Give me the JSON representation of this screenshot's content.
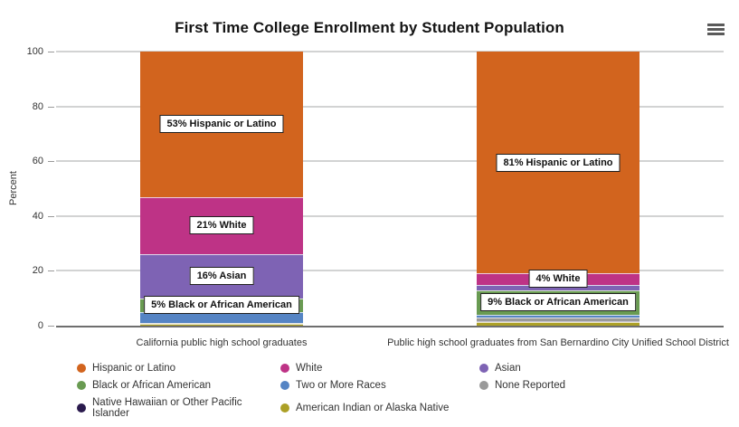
{
  "header": {
    "menu_icon": "hamburger-menu-icon"
  },
  "chart_data": {
    "type": "bar",
    "stacking": "percent",
    "title": "First Time College Enrollment by Student Population",
    "xlabel": "",
    "ylabel": "Percent",
    "ylim": [
      0,
      100
    ],
    "yticks": [
      0,
      20,
      40,
      60,
      80,
      100
    ],
    "grid": true,
    "legend_position": "bottom-left, 3 columns",
    "categories": [
      "California public high school graduates",
      "Public high school graduates from San Bernardino City Unified School District"
    ],
    "series": [
      {
        "name": "Hispanic or Latino",
        "color": "#D2641E",
        "values": [
          53,
          81
        ],
        "data_labels": [
          "53% Hispanic or Latino",
          "81% Hispanic or Latino"
        ]
      },
      {
        "name": "White",
        "color": "#BE3386",
        "values": [
          21,
          4
        ],
        "data_labels": [
          "21% White",
          "4% White"
        ]
      },
      {
        "name": "Asian",
        "color": "#7E63B4",
        "values": [
          16,
          2
        ],
        "data_labels": [
          "16% Asian",
          null
        ]
      },
      {
        "name": "Black or African American",
        "color": "#699B52",
        "values": [
          5,
          9
        ],
        "data_labels": [
          "5% Black or African American",
          "9% Black or African American"
        ]
      },
      {
        "name": "Two or More Races",
        "color": "#5584C4",
        "values": [
          4,
          1
        ],
        "data_labels": [
          null,
          null
        ]
      },
      {
        "name": "None Reported",
        "color": "#9A9A9A",
        "values": [
          0.3,
          1.5
        ],
        "data_labels": [
          null,
          null
        ]
      },
      {
        "name": "Native Hawaiian or Other Pacific Islander",
        "color": "#2A1A4D",
        "values": [
          0.2,
          0.2
        ],
        "data_labels": [
          null,
          null
        ]
      },
      {
        "name": "American Indian or Alaska Native",
        "color": "#ACA026",
        "values": [
          0.5,
          1.3
        ],
        "data_labels": [
          null,
          null
        ]
      }
    ]
  }
}
